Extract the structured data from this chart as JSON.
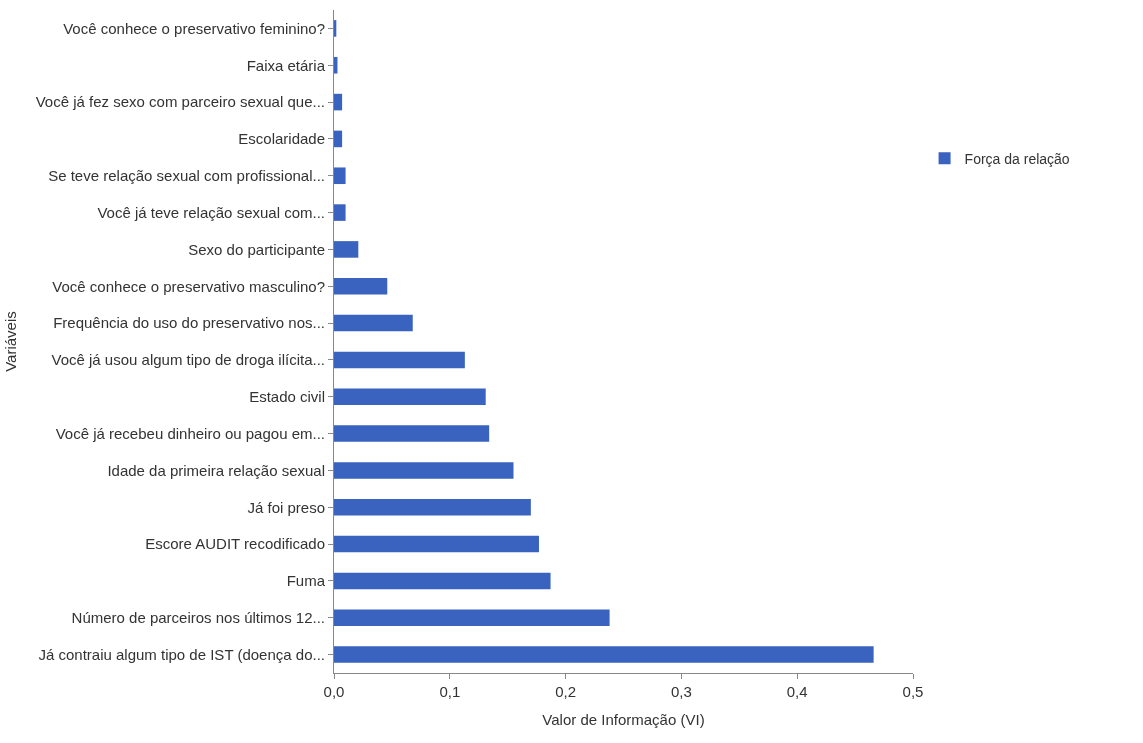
{
  "chart_data": {
    "type": "bar",
    "orientation": "horizontal",
    "xlabel": "Valor de Informação (VI)",
    "ylabel": "Variáveis",
    "categories": [
      "Você conhece o preservativo feminino?",
      "Faixa etária",
      "Você já fez sexo com parceiro sexual que...",
      "Escolaridade",
      "Se teve relação sexual com profissional...",
      "Você já teve relação sexual com...",
      "Sexo do participante",
      "Você conhece o preservativo masculino?",
      "Frequência do uso do preservativo nos...",
      "Você já usou algum tipo de droga ilícita...",
      "Estado civil",
      "Você já recebeu dinheiro ou pagou em...",
      "Idade da primeira relação sexual",
      "Já foi preso",
      "Escore AUDIT recodificado",
      "Fuma",
      "Número de parceiros nos últimos 12...",
      "Já contraiu algum tipo de IST (doença do..."
    ],
    "series": [
      {
        "name": "Força da relação",
        "color": "#3a62bf",
        "values": [
          0.002,
          0.003,
          0.007,
          0.007,
          0.01,
          0.01,
          0.021,
          0.046,
          0.068,
          0.113,
          0.131,
          0.134,
          0.155,
          0.17,
          0.177,
          0.187,
          0.238,
          0.466
        ]
      }
    ],
    "xlim": [
      0,
      0.5
    ],
    "xticks": [
      {
        "value": 0,
        "label": "0,0"
      },
      {
        "value": 0.1,
        "label": "0,1"
      },
      {
        "value": 0.2,
        "label": "0,2"
      },
      {
        "value": 0.3,
        "label": "0,3"
      },
      {
        "value": 0.4,
        "label": "0,4"
      },
      {
        "value": 0.5,
        "label": "0,5"
      }
    ],
    "grid": false,
    "legend": "right"
  }
}
